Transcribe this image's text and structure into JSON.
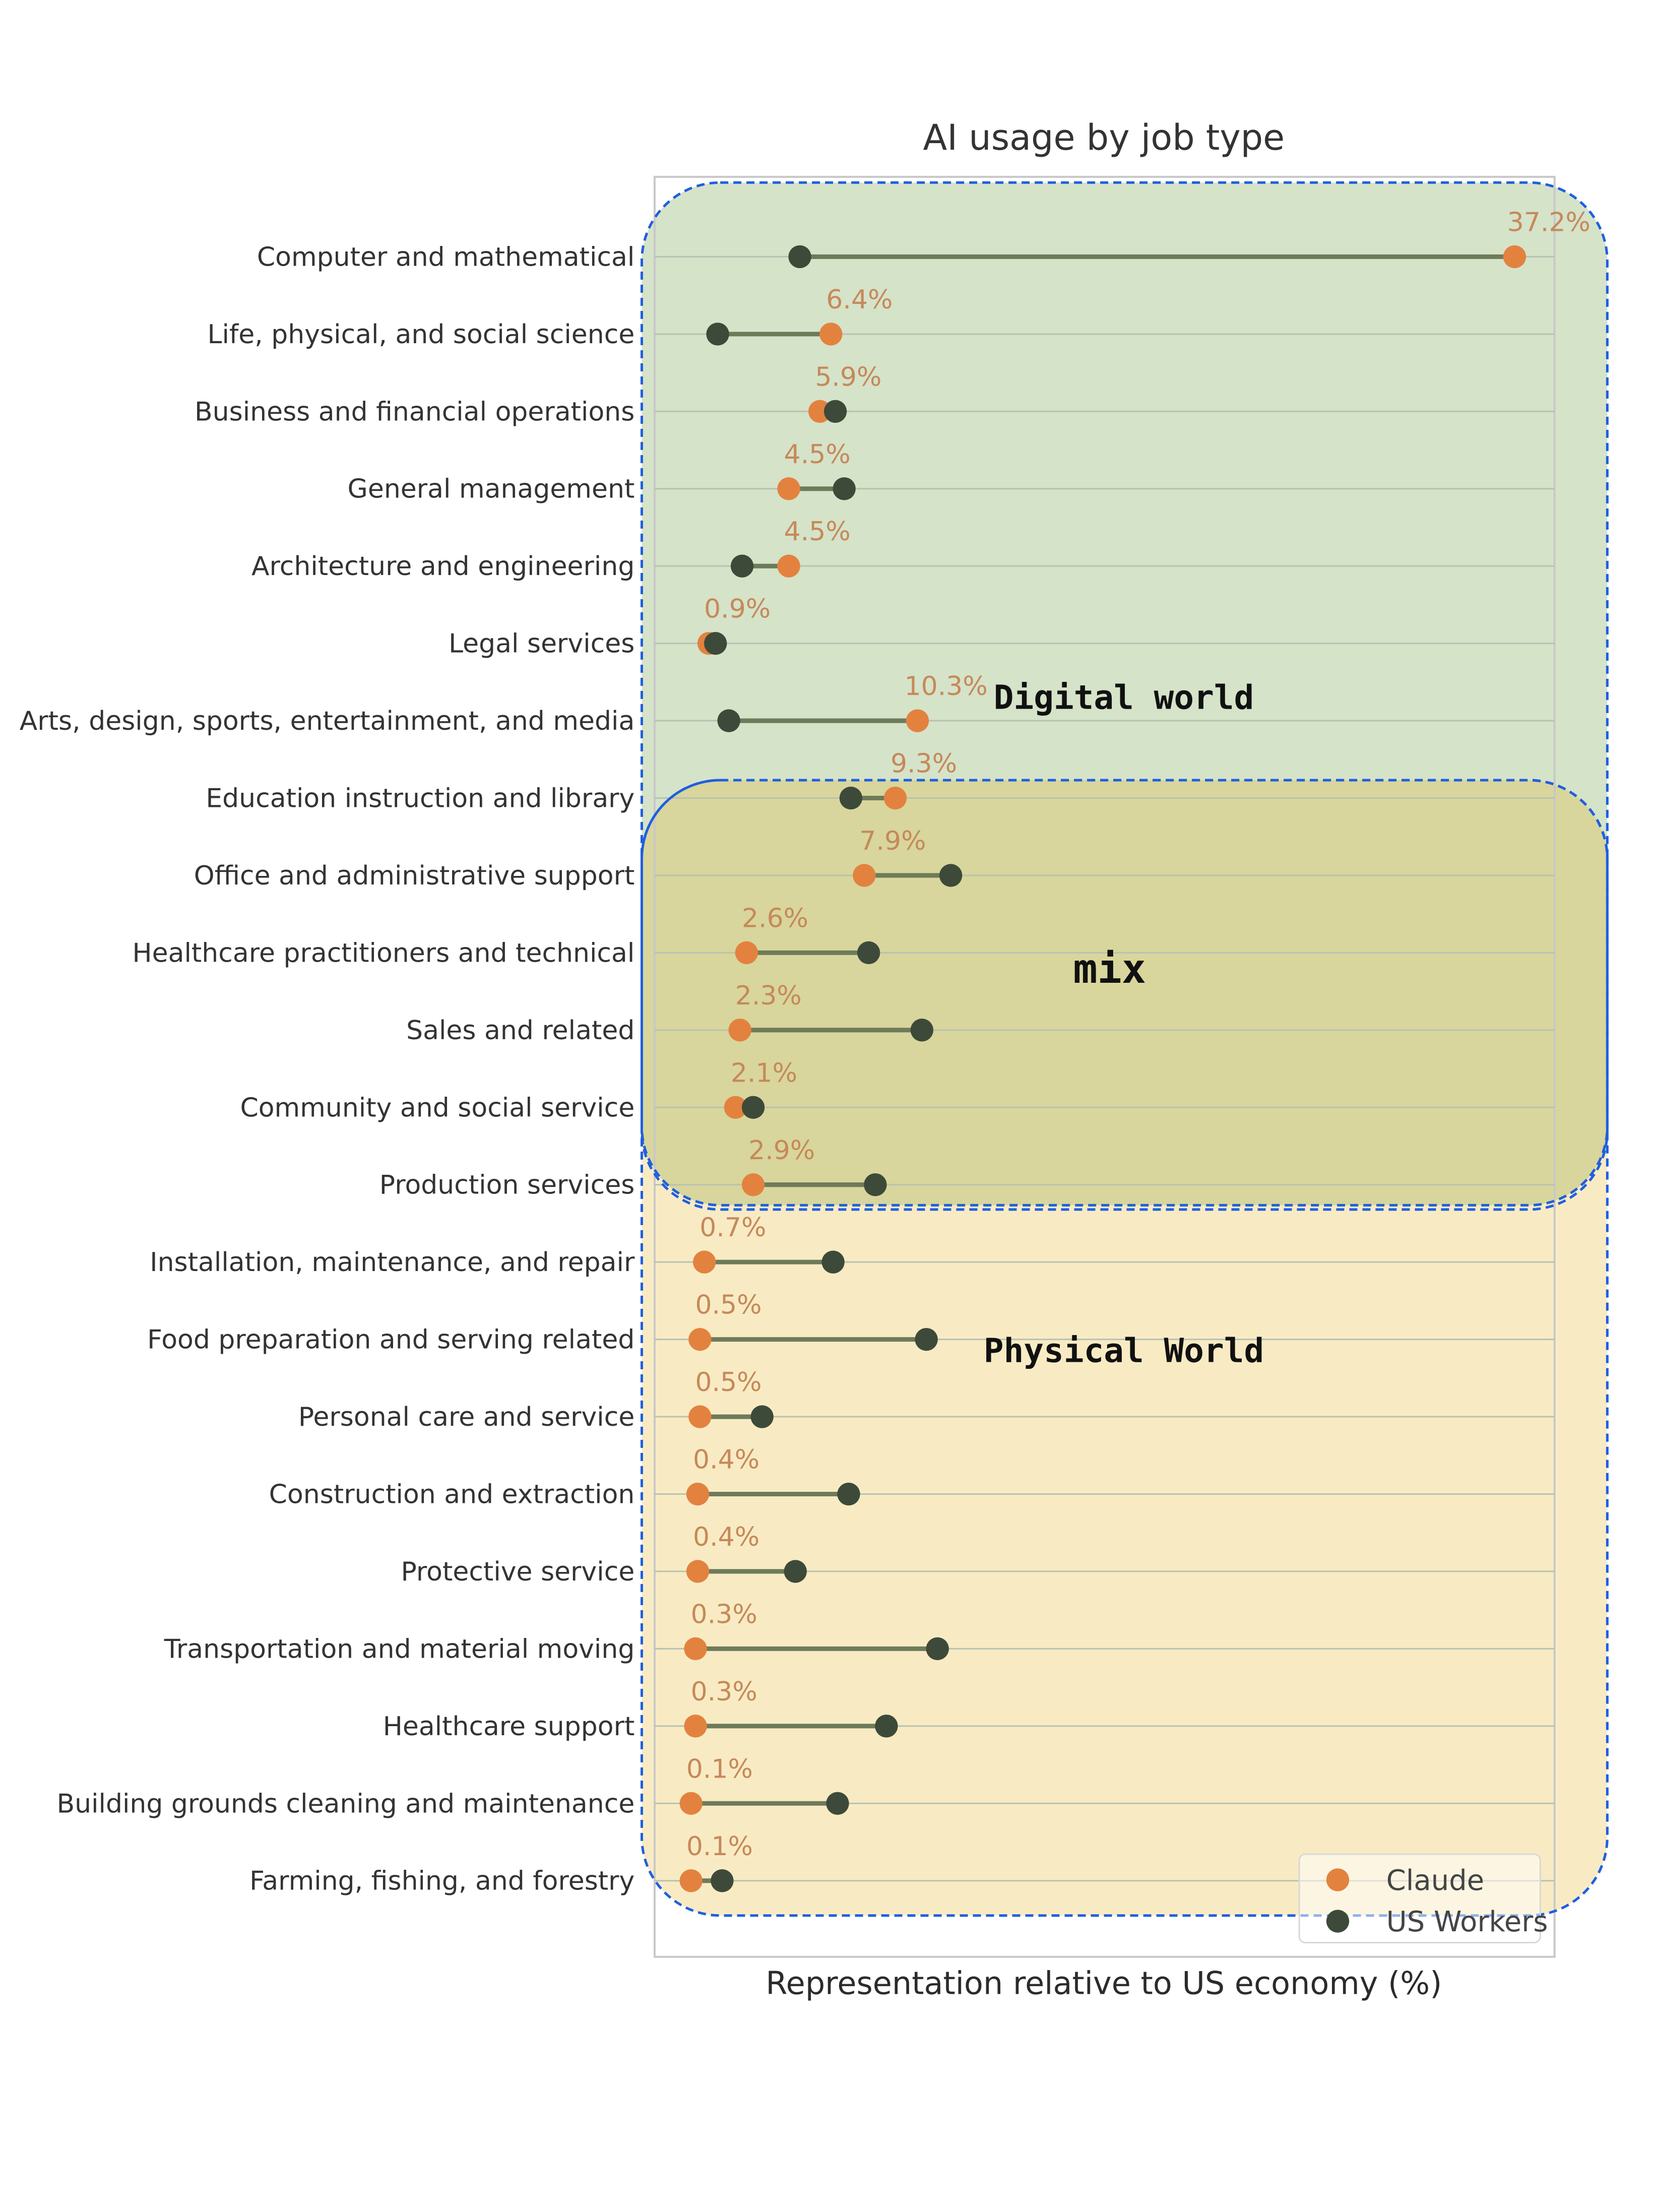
{
  "chart_data": {
    "type": "dumbbell",
    "title": "AI usage by job type",
    "xlabel": "Representation relative to US economy (%)",
    "ylabel": "",
    "xlim": [
      0,
      38
    ],
    "x_ticks_visible": false,
    "grid": "horizontal",
    "legend_position": "bottom-right",
    "colors": {
      "claude": "#e3823f",
      "us_workers": "#3d4a3a",
      "line": "#6e7b5a",
      "label": "#c6895a",
      "digital_fill": "#d5e3c9",
      "physical_fill": "#f8ebc4",
      "mix_fill": "#d8d69c",
      "region_border": "#1f5fe0"
    },
    "categories": [
      "Computer and mathematical",
      "Life, physical, and social science",
      "Business and financial operations",
      "General management",
      "Architecture and engineering",
      "Legal services",
      "Arts, design, sports, entertainment, and media",
      "Education instruction and library",
      "Office and administrative support",
      "Healthcare practitioners and technical",
      "Sales and related",
      "Community and social service",
      "Production services",
      "Installation, maintenance, and repair",
      "Food preparation and serving related",
      "Personal care and service",
      "Construction and extraction",
      "Protective service",
      "Transportation and material moving",
      "Healthcare support",
      "Building grounds cleaning and maintenance",
      "Farming, fishing, and forestry"
    ],
    "series": [
      {
        "name": "Claude",
        "values": [
          37.2,
          6.4,
          5.9,
          4.5,
          4.5,
          0.9,
          10.3,
          9.3,
          7.9,
          2.6,
          2.3,
          2.1,
          2.9,
          0.7,
          0.5,
          0.5,
          0.4,
          0.4,
          0.3,
          0.3,
          0.1,
          0.1
        ]
      },
      {
        "name": "US Workers",
        "values": [
          5.0,
          1.3,
          6.6,
          7.0,
          2.4,
          1.2,
          1.8,
          7.3,
          11.8,
          8.1,
          10.5,
          2.9,
          8.4,
          6.5,
          10.7,
          3.3,
          7.2,
          4.8,
          11.2,
          8.9,
          6.7,
          1.5
        ]
      }
    ],
    "value_labels": [
      "37.2%",
      "6.4%",
      "5.9%",
      "4.5%",
      "4.5%",
      "0.9%",
      "10.3%",
      "9.3%",
      "7.9%",
      "2.6%",
      "2.3%",
      "2.1%",
      "2.9%",
      "0.7%",
      "0.5%",
      "0.5%",
      "0.4%",
      "0.4%",
      "0.3%",
      "0.3%",
      "0.1%",
      "0.1%"
    ],
    "annotations": [
      {
        "text": "Digital world",
        "rows": [
          0,
          12
        ]
      },
      {
        "text": "mix",
        "rows": [
          8,
          12
        ]
      },
      {
        "text": "Physical World",
        "rows": [
          8,
          21
        ]
      }
    ]
  }
}
